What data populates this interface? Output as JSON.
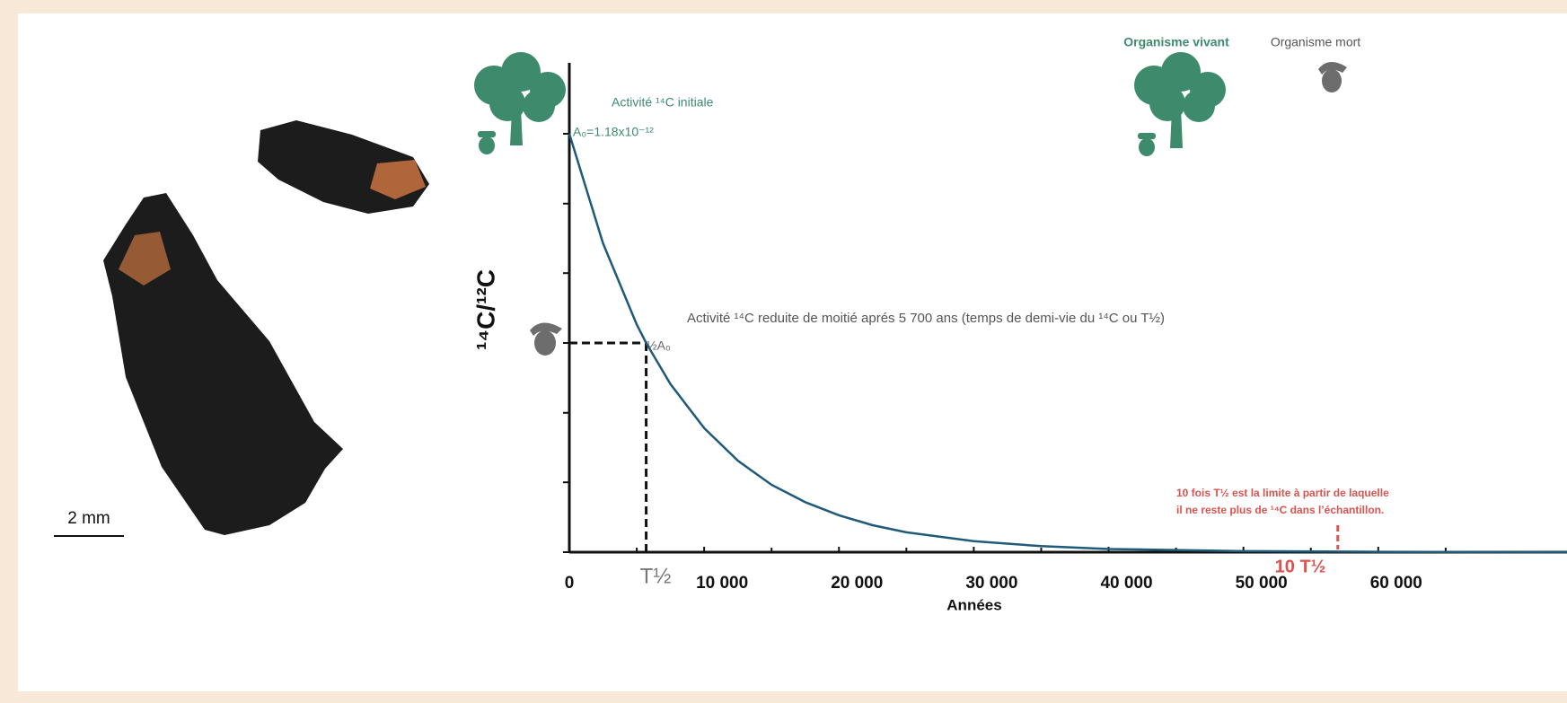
{
  "chart_data": {
    "type": "line",
    "y_axis_label": "¹⁴C/¹²C",
    "x_axis_label": "Années",
    "x": [
      0,
      2500,
      5000,
      5700,
      7500,
      10000,
      12500,
      15000,
      17500,
      20000,
      22500,
      25000,
      30000,
      35000,
      40000,
      50000,
      60000,
      74000
    ],
    "series": [
      {
        "color": "#1f5a78",
        "values": [
          1.18,
          0.871,
          0.642,
          0.59,
          0.474,
          0.35,
          0.258,
          0.19,
          0.141,
          0.104,
          0.076,
          0.056,
          0.031,
          0.017,
          0.009,
          0.003,
          0.001,
          0
        ]
      }
    ],
    "xlim": [
      0,
      74000
    ],
    "ylim": [
      0,
      1.38
    ],
    "xticks": [
      0,
      {
        "value": 10000,
        "label": "10 000"
      },
      {
        "value": 20000,
        "label": "20 000"
      },
      {
        "value": 30000,
        "label": "30 000"
      },
      {
        "value": 40000,
        "label": "40 000"
      },
      {
        "value": 50000,
        "label": "50 000"
      },
      {
        "value": 60000,
        "label": "60 000"
      }
    ],
    "xticks_minor": [
      5000,
      15000,
      25000,
      35000,
      45000,
      55000,
      65000
    ],
    "yticks": [
      0,
      0.197,
      0.393,
      0.59,
      0.787,
      0.983,
      1.18
    ],
    "half_life": 5700,
    "half_value": 0.59,
    "limit": 57000,
    "annotations": {
      "initial": "Activité ¹⁴C initiale",
      "a0": "A₀=1.18x10⁻¹²",
      "half": "Activité ¹⁴C reduite de moitié aprés 5 700 ans (temps de demi-vie du ¹⁴C ou T½)",
      "half_a0": "½A₀",
      "t_half": "T½",
      "ten_t_half": "10 T½",
      "limit_note": [
        "10 fois T½ est la limite à partir de laquelle",
        "il ne reste plus de ¹⁴C dans l’échantillon."
      ],
      "alive": "Organisme vivant",
      "dead": "Organisme mort",
      "scale": "2 mm"
    }
  }
}
